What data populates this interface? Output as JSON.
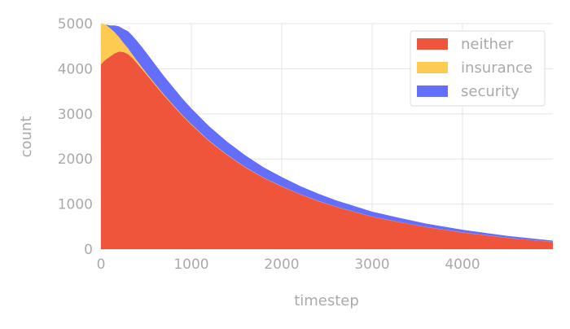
{
  "colors": {
    "neither": "#EF553B",
    "insurance": "#FECB52",
    "security": "#636EFA",
    "grid": "#E6E6E6",
    "text": "#AAAAAA"
  },
  "chart_data": {
    "type": "area",
    "stacked": true,
    "xlabel": "timestep",
    "ylabel": "count",
    "xlim": [
      0,
      5000
    ],
    "ylim": [
      0,
      5000
    ],
    "xticks": [
      0,
      1000,
      2000,
      3000,
      4000
    ],
    "yticks": [
      0,
      1000,
      2000,
      3000,
      4000,
      5000
    ],
    "grid": true,
    "legend_position": "top-right",
    "x": [
      0,
      50,
      100,
      150,
      200,
      250,
      300,
      350,
      400,
      450,
      500,
      600,
      700,
      800,
      900,
      1000,
      1200,
      1400,
      1600,
      1800,
      2000,
      2200,
      2400,
      2600,
      2800,
      3000,
      3300,
      3600,
      4000,
      4500,
      5000
    ],
    "series": [
      {
        "name": "neither",
        "values": [
          4100,
          4200,
          4270,
          4340,
          4380,
          4370,
          4320,
          4230,
          4120,
          4000,
          3880,
          3640,
          3400,
          3180,
          2960,
          2760,
          2390,
          2080,
          1810,
          1580,
          1390,
          1220,
          1070,
          940,
          830,
          720,
          600,
          490,
          370,
          250,
          160
        ]
      },
      {
        "name": "insurance",
        "values": [
          900,
          780,
          630,
          470,
          320,
          200,
          130,
          80,
          55,
          40,
          30,
          22,
          18,
          15,
          12,
          10,
          8,
          7,
          6,
          5,
          5,
          4,
          4,
          3,
          3,
          3,
          2,
          2,
          2,
          2,
          2
        ]
      },
      {
        "name": "security",
        "values": [
          0,
          0,
          60,
          150,
          240,
          310,
          380,
          420,
          440,
          450,
          450,
          430,
          410,
          390,
          370,
          350,
          320,
          290,
          260,
          230,
          205,
          180,
          160,
          140,
          125,
          110,
          92,
          75,
          58,
          42,
          28
        ]
      }
    ]
  }
}
